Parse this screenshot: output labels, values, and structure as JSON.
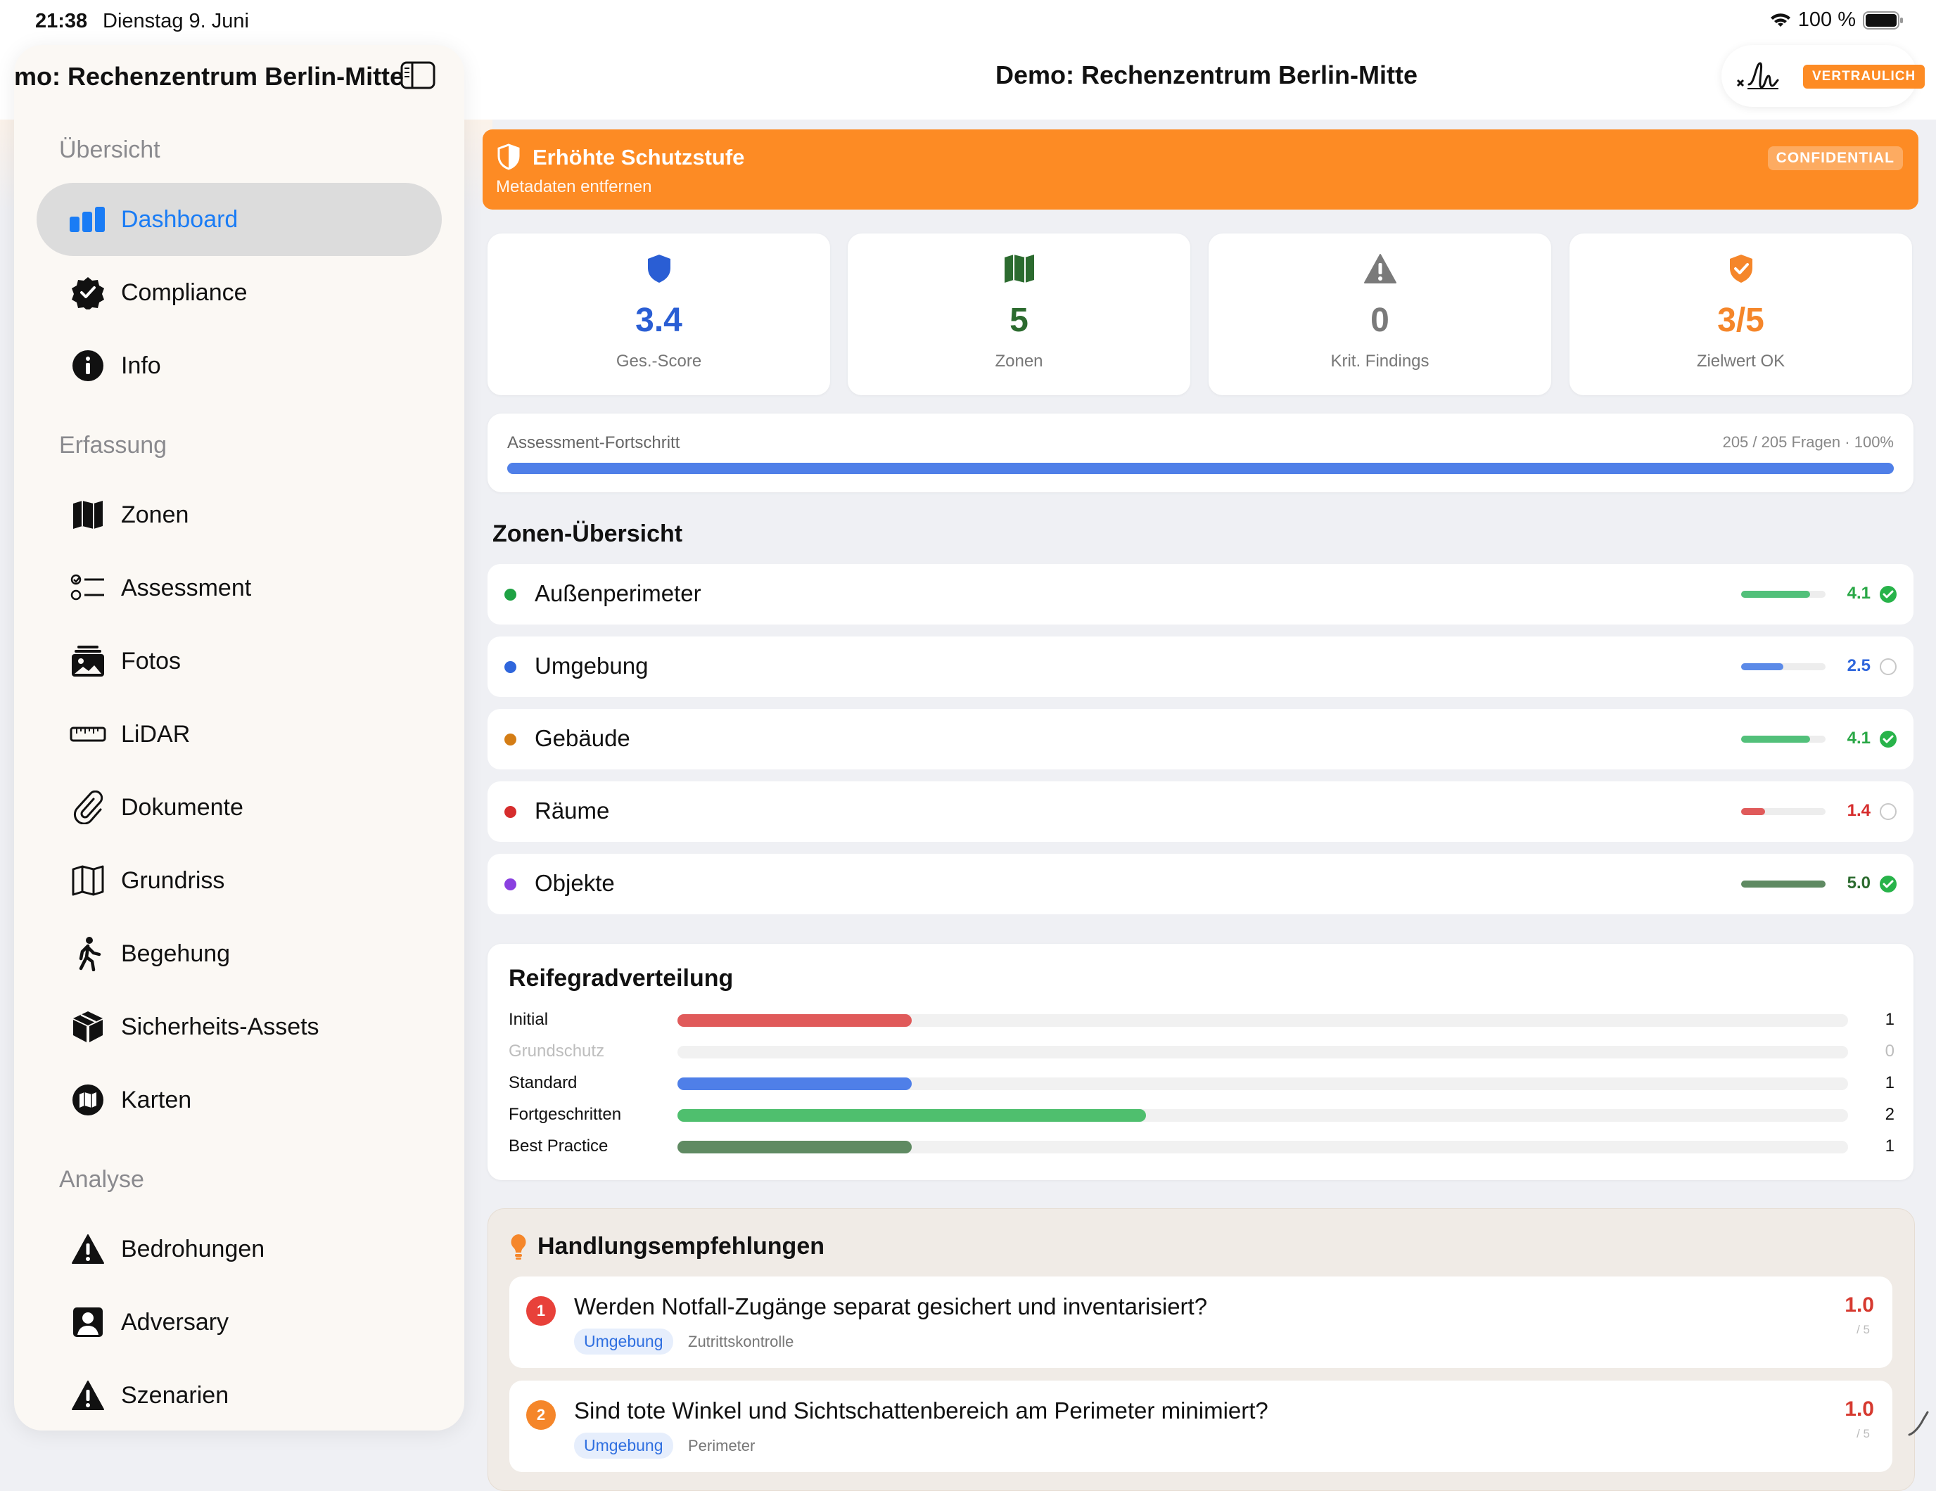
{
  "status_bar": {
    "time": "21:38",
    "date": "Dienstag 9. Juni",
    "battery": "100 %"
  },
  "sidebar": {
    "title": "Demo: Rechenzentrum Berlin-Mitte",
    "sections": [
      {
        "label": "Übersicht",
        "items": [
          {
            "label": "Dashboard",
            "icon": "chart-bar-icon",
            "active": true
          },
          {
            "label": "Compliance",
            "icon": "checkmark-seal-icon"
          },
          {
            "label": "Info",
            "icon": "info-circle-icon"
          }
        ]
      },
      {
        "label": "Erfassung",
        "items": [
          {
            "label": "Zonen",
            "icon": "map-icon"
          },
          {
            "label": "Assessment",
            "icon": "checklist-icon"
          },
          {
            "label": "Fotos",
            "icon": "photo-stack-icon"
          },
          {
            "label": "LiDAR",
            "icon": "ruler-icon"
          },
          {
            "label": "Dokumente",
            "icon": "paperclip-icon"
          },
          {
            "label": "Grundriss",
            "icon": "floorplan-map-icon"
          },
          {
            "label": "Begehung",
            "icon": "walking-figure-icon"
          },
          {
            "label": "Sicherheits-Assets",
            "icon": "cube-icon"
          },
          {
            "label": "Karten",
            "icon": "map-circle-icon"
          }
        ]
      },
      {
        "label": "Analyse",
        "items": [
          {
            "label": "Bedrohungen",
            "icon": "warning-triangle-icon"
          },
          {
            "label": "Adversary",
            "icon": "person-square-icon"
          },
          {
            "label": "Szenarien",
            "icon": "warning-triangle-icon"
          }
        ]
      }
    ]
  },
  "header": {
    "title": "Demo: Rechenzentrum Berlin-Mitte",
    "badge": "VERTRAULICH"
  },
  "banner": {
    "title": "Erhöhte Schutzstufe",
    "subtitle": "Metadaten entfernen",
    "badge": "CONFIDENTIAL",
    "color": "#fd8b24"
  },
  "stats": [
    {
      "value": "3.4",
      "label": "Ges.-Score",
      "color": "#2a5ed4",
      "icon": "shield-icon"
    },
    {
      "value": "5",
      "label": "Zonen",
      "color": "#2c6b2f",
      "icon": "map-icon"
    },
    {
      "value": "0",
      "label": "Krit. Findings",
      "color": "#7a7a7a",
      "icon": "warning-triangle-icon"
    },
    {
      "value": "3/5",
      "label": "Zielwert OK",
      "color": "#f5862a",
      "icon": "checkmark-shield-icon"
    }
  ],
  "progress": {
    "label": "Assessment-Fortschritt",
    "detail": "205 / 205 Fragen",
    "percent_label": "100%",
    "fraction": 1.0
  },
  "zones_title": "Zonen-Übersicht",
  "zones": [
    {
      "name": "Außenperimeter",
      "score": "4.1",
      "value": 4.1,
      "dot": "#1fa244",
      "bar": "#52c07a",
      "text": "#28a745",
      "ok": true
    },
    {
      "name": "Umgebung",
      "score": "2.5",
      "value": 2.5,
      "dot": "#2f66dc",
      "bar": "#5b8ae8",
      "text": "#2f66dc",
      "ok": false
    },
    {
      "name": "Gebäude",
      "score": "4.1",
      "value": 4.1,
      "dot": "#d47d15",
      "bar": "#52c07a",
      "text": "#28a745",
      "ok": true
    },
    {
      "name": "Räume",
      "score": "1.4",
      "value": 1.4,
      "dot": "#d62d2d",
      "bar": "#e05a5a",
      "text": "#d62d2d",
      "ok": false
    },
    {
      "name": "Objekte",
      "score": "5.0",
      "value": 5.0,
      "dot": "#8a40e0",
      "bar": "#5f8a62",
      "text": "#2c6b2f",
      "ok": true
    }
  ],
  "maturity": {
    "title": "Reifegradverteilung",
    "max": 5,
    "rows": [
      {
        "label": "Initial",
        "count": "1",
        "value": 1,
        "color": "#e05a5a",
        "muted": false
      },
      {
        "label": "Grundschutz",
        "count": "0",
        "value": 0,
        "color": "#cccccc",
        "muted": true
      },
      {
        "label": "Standard",
        "count": "1",
        "value": 1,
        "color": "#4f7fe8",
        "muted": false
      },
      {
        "label": "Fortgeschritten",
        "count": "2",
        "value": 2,
        "color": "#4fbf6e",
        "muted": false
      },
      {
        "label": "Best Practice",
        "count": "1",
        "value": 1,
        "color": "#5f8a62",
        "muted": false
      }
    ]
  },
  "recommendations": {
    "title": "Handlungsempfehlungen",
    "items": [
      {
        "num": "1",
        "num_color": "#e8413a",
        "question": "Werden Notfall-Zugänge separat gesichert und inventarisiert?",
        "zone": "Umgebung",
        "category": "Zutrittskontrolle",
        "score": "1.0",
        "max": "/ 5"
      },
      {
        "num": "2",
        "num_color": "#f5862a",
        "question": "Sind tote Winkel und Sichtschattenbereich am Perimeter minimiert?",
        "zone": "Umgebung",
        "category": "Perimeter",
        "score": "1.0",
        "max": "/ 5"
      }
    ]
  }
}
